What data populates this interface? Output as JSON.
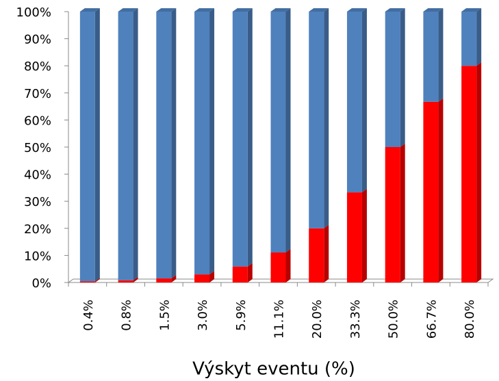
{
  "chart_data": {
    "type": "stacked_bar_3d",
    "xlabel": "Výskyt eventu (%)",
    "categories": [
      "0.4%",
      "0.8%",
      "1.5%",
      "3.0%",
      "5.9%",
      "11.1%",
      "20.0%",
      "33.3%",
      "50.0%",
      "66.7%",
      "80.0%"
    ],
    "series": [
      {
        "color": "#ff0000",
        "values": [
          0.4,
          0.8,
          1.5,
          3.0,
          5.9,
          11.1,
          20.0,
          33.3,
          50.0,
          66.7,
          80.0
        ]
      },
      {
        "color": "#4f81bd",
        "values": [
          99.6,
          99.2,
          98.5,
          97.0,
          94.1,
          88.9,
          80.0,
          66.7,
          50.0,
          33.3,
          20.0
        ]
      }
    ],
    "ylim": [
      0,
      100
    ],
    "yticks": [
      {
        "value": 0,
        "label": "0%"
      },
      {
        "value": 10,
        "label": "10%"
      },
      {
        "value": 20,
        "label": "20%"
      },
      {
        "value": 30,
        "label": "30%"
      },
      {
        "value": 40,
        "label": "40%"
      },
      {
        "value": 50,
        "label": "50%"
      },
      {
        "value": 60,
        "label": "60%"
      },
      {
        "value": 70,
        "label": "70%"
      },
      {
        "value": 80,
        "label": "80%"
      },
      {
        "value": 90,
        "label": "90%"
      },
      {
        "value": 100,
        "label": "100%"
      }
    ]
  }
}
